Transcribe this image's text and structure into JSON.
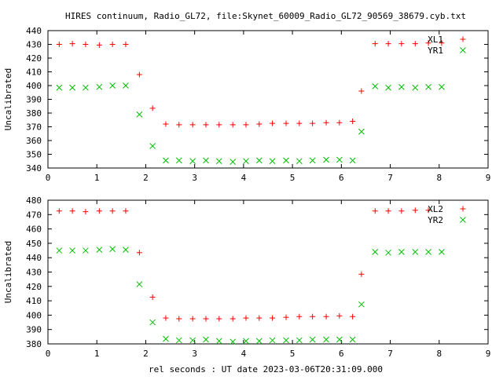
{
  "chart_data": {
    "title": "HIRES continuum, Radio_GL72, file:Skynet_60009_Radio_GL72_90569_38679.cyb.txt",
    "xlabel": "rel seconds : UT date 2023-03-06T20:31:09.000",
    "panels": [
      {
        "type": "scatter",
        "ylabel": "Uncalibrated",
        "xlim": [
          0,
          9
        ],
        "ylim": [
          340,
          440
        ],
        "xticks": [
          0,
          1,
          2,
          3,
          4,
          5,
          6,
          7,
          8,
          9
        ],
        "yticks": [
          340,
          350,
          360,
          370,
          380,
          390,
          400,
          410,
          420,
          430,
          440
        ],
        "legend_position": "top-right",
        "series": [
          {
            "name": "XL1",
            "marker": "plus",
            "color": "#ff0000",
            "x": [
              0.23,
              0.5,
              0.77,
              1.05,
              1.32,
              1.59,
              1.87,
              2.14,
              2.41,
              2.68,
              2.96,
              3.23,
              3.5,
              3.78,
              4.05,
              4.32,
              4.59,
              4.87,
              5.14,
              5.41,
              5.69,
              5.96,
              6.23,
              6.41,
              6.69,
              6.96,
              7.23,
              7.51,
              7.78,
              8.05
            ],
            "y": [
              430,
              430.5,
              430,
              429.5,
              430,
              430,
              408,
              383.5,
              372,
              371.5,
              371.5,
              371.5,
              371.5,
              371.5,
              371.5,
              372,
              372.5,
              372.5,
              372.5,
              372.5,
              373,
              373,
              374,
              396,
              430.5,
              430.5,
              430.5,
              430.5,
              431,
              431
            ]
          },
          {
            "name": "YR1",
            "marker": "cross",
            "color": "#00c000",
            "x": [
              0.23,
              0.5,
              0.77,
              1.05,
              1.32,
              1.59,
              1.87,
              2.14,
              2.41,
              2.68,
              2.96,
              3.23,
              3.5,
              3.78,
              4.05,
              4.32,
              4.59,
              4.87,
              5.14,
              5.41,
              5.69,
              5.96,
              6.23,
              6.41,
              6.69,
              6.96,
              7.23,
              7.51,
              7.78,
              8.05
            ],
            "y": [
              398.5,
              398.5,
              398.5,
              399,
              400,
              400,
              379,
              356,
              345.5,
              345.5,
              345,
              345.5,
              345,
              344.5,
              345,
              345.5,
              345,
              345.5,
              345,
              345.5,
              346,
              346,
              345.5,
              366.5,
              399.5,
              398.5,
              399,
              398.5,
              399,
              399
            ]
          }
        ]
      },
      {
        "type": "scatter",
        "ylabel": "Uncalibrated",
        "xlim": [
          0,
          9
        ],
        "ylim": [
          380,
          480
        ],
        "xticks": [
          0,
          1,
          2,
          3,
          4,
          5,
          6,
          7,
          8,
          9
        ],
        "yticks": [
          380,
          390,
          400,
          410,
          420,
          430,
          440,
          450,
          460,
          470,
          480
        ],
        "legend_position": "top-right",
        "series": [
          {
            "name": "XL2",
            "marker": "plus",
            "color": "#ff0000",
            "x": [
              0.23,
              0.5,
              0.77,
              1.05,
              1.32,
              1.59,
              1.87,
              2.14,
              2.41,
              2.68,
              2.96,
              3.23,
              3.5,
              3.78,
              4.05,
              4.32,
              4.59,
              4.87,
              5.14,
              5.41,
              5.69,
              5.96,
              6.23,
              6.41,
              6.69,
              6.96,
              7.23,
              7.51,
              7.78
            ],
            "y": [
              472.5,
              472.5,
              472,
              472.5,
              472.5,
              472.5,
              443.5,
              412.5,
              398,
              397.5,
              397.5,
              397.5,
              397.5,
              397.5,
              398,
              398,
              398,
              398.5,
              399,
              399,
              399,
              399.5,
              399,
              428.5,
              472.5,
              472.5,
              472.5,
              473,
              473
            ]
          },
          {
            "name": "YR2",
            "marker": "cross",
            "color": "#00c000",
            "x": [
              0.23,
              0.5,
              0.77,
              1.05,
              1.32,
              1.59,
              1.87,
              2.14,
              2.41,
              2.68,
              2.96,
              3.23,
              3.5,
              3.78,
              4.05,
              4.32,
              4.59,
              4.87,
              5.14,
              5.41,
              5.69,
              5.96,
              6.23,
              6.41,
              6.69,
              6.96,
              7.23,
              7.51,
              7.78,
              8.05
            ],
            "y": [
              445,
              445,
              445,
              445.5,
              446,
              445.5,
              421.5,
              395,
              383.5,
              382.5,
              382.5,
              383,
              382,
              381.5,
              382,
              382,
              382.5,
              382.5,
              382.5,
              383,
              383,
              383,
              383,
              407.5,
              444,
              443.5,
              444,
              444,
              444,
              444
            ]
          }
        ]
      }
    ]
  }
}
